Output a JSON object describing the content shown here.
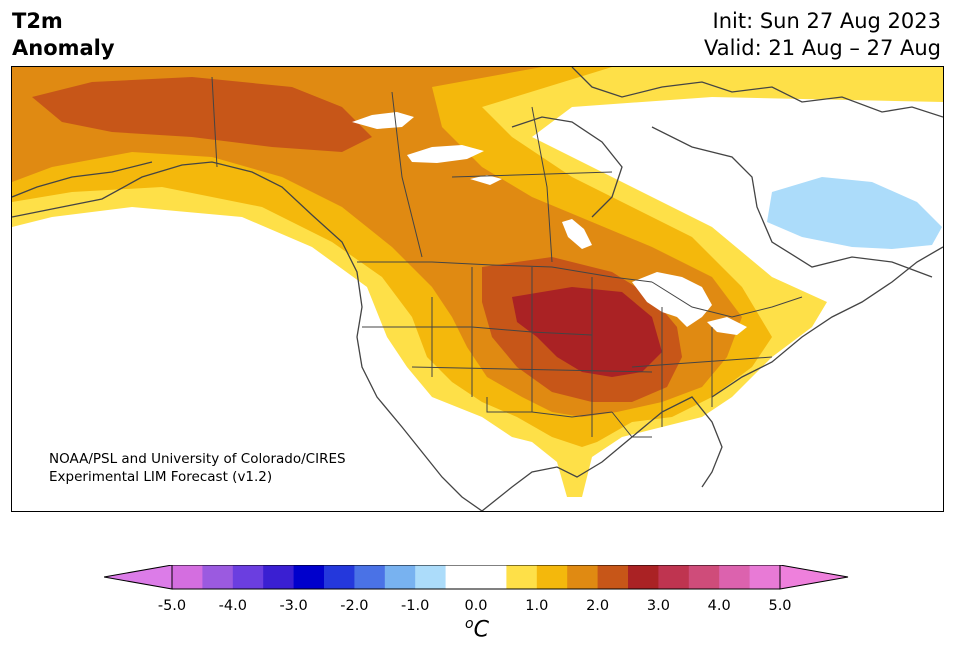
{
  "title": {
    "line1": "T2m",
    "line2": "Anomaly"
  },
  "dates": {
    "init": "Init: Sun 27 Aug 2023",
    "valid": "Valid: 21 Aug – 27 Aug"
  },
  "credit": {
    "line1": "NOAA/PSL and University of Colorado/CIRES",
    "line2": "Experimental LIM Forecast (v1.2)"
  },
  "colorbar": {
    "ticks": [
      "-5.0",
      "-4.0",
      "-3.0",
      "-2.0",
      "-1.0",
      "0.0",
      "1.0",
      "2.0",
      "3.0",
      "4.0",
      "5.0"
    ],
    "colors": [
      "#d46ee0",
      "#9b5ae0",
      "#6b3ee0",
      "#3a1fd2",
      "#0000cc",
      "#2438dc",
      "#4a72e6",
      "#78b2f0",
      "#acdcfa",
      "#ffffff",
      "#ffffff",
      "#fee048",
      "#f4b80c",
      "#e08a12",
      "#c75618",
      "#aa2224",
      "#bf3450",
      "#cf4c7a",
      "#dc62ae",
      "#e87ad6"
    ],
    "under_color": "#dc7ce8",
    "over_color": "#ee80dc",
    "unit_base": "C",
    "unit_sup": "o"
  },
  "map_colors": {
    "c1": "#fee048",
    "c2": "#f4b80c",
    "c3": "#e08a12",
    "c4": "#c75618",
    "c5": "#aa2224",
    "cold": "#acdcfa",
    "lines": "#444444"
  }
}
